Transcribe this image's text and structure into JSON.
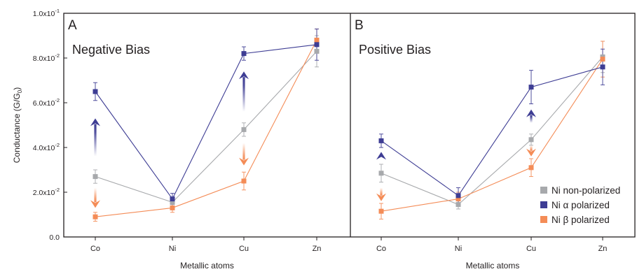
{
  "chart_data": {
    "type": "line",
    "ylabel": "Conductance (G/G",
    "ylabel_sub": "0",
    "ylabel_close": ")",
    "ylim": [
      0,
      0.1
    ],
    "y_ticks": [
      {
        "value": 0.0,
        "label": "0.0"
      },
      {
        "value": 0.02,
        "mant": "2.0x10",
        "exp": "-2"
      },
      {
        "value": 0.04,
        "mant": "4.0x10",
        "exp": "-2"
      },
      {
        "value": 0.06,
        "mant": "6.0x10",
        "exp": "-2"
      },
      {
        "value": 0.08,
        "mant": "8.0x10",
        "exp": "-2"
      },
      {
        "value": 0.1,
        "mant": "1.0x10",
        "exp": "-1"
      }
    ],
    "colors": {
      "non": "#a7a9ac",
      "alpha": "#3e3d94",
      "beta": "#f48c57",
      "axis": "#231f20"
    },
    "legend": [
      {
        "key": "non",
        "label": "Ni non-polarized"
      },
      {
        "key": "alpha",
        "label": "Ni α polarized"
      },
      {
        "key": "beta",
        "label": "Ni β polarized"
      }
    ],
    "panels": [
      {
        "letter": "A",
        "subtitle": "Negative Bias",
        "xlabel": "Metallic atoms",
        "categories": [
          "Co",
          "Ni",
          "Cu",
          "Zn"
        ],
        "series": [
          {
            "key": "non",
            "values": [
              0.027,
              0.0155,
              0.048,
              0.083
            ],
            "errors": [
              0.003,
              0.002,
              0.003,
              0.007
            ]
          },
          {
            "key": "alpha",
            "values": [
              0.065,
              0.017,
              0.082,
              0.086
            ],
            "errors": [
              0.004,
              0.0025,
              0.003,
              0.007
            ]
          },
          {
            "key": "beta",
            "values": [
              0.009,
              0.013,
              0.025,
              0.088
            ],
            "errors": [
              0.002,
              0.002,
              0.004,
              0.005
            ]
          }
        ],
        "arrows": [
          {
            "cat": "Co",
            "dir": "up",
            "key": "alpha",
            "from": 0.036,
            "to": 0.053
          },
          {
            "cat": "Co",
            "dir": "down",
            "key": "beta",
            "from": 0.022,
            "to": 0.013
          },
          {
            "cat": "Cu",
            "dir": "up",
            "key": "alpha",
            "from": 0.056,
            "to": 0.074
          },
          {
            "cat": "Cu",
            "dir": "down",
            "key": "beta",
            "from": 0.042,
            "to": 0.032
          }
        ]
      },
      {
        "letter": "B",
        "subtitle": "Positive Bias",
        "xlabel": "Metallic atoms",
        "categories": [
          "Co",
          "Ni",
          "Cu",
          "Zn"
        ],
        "series": [
          {
            "key": "non",
            "values": [
              0.0285,
              0.0145,
              0.0435,
              0.0805
            ],
            "errors": [
              0.004,
              0.002,
              0.0025,
              0.007
            ]
          },
          {
            "key": "alpha",
            "values": [
              0.043,
              0.0185,
              0.067,
              0.076
            ],
            "errors": [
              0.003,
              0.0035,
              0.0075,
              0.008
            ]
          },
          {
            "key": "beta",
            "values": [
              0.0115,
              0.017,
              0.031,
              0.0795
            ],
            "errors": [
              0.0035,
              0.003,
              0.004,
              0.008
            ]
          }
        ],
        "arrows": [
          {
            "cat": "Co",
            "dir": "up",
            "key": "alpha",
            "from": 0.036,
            "to": 0.038
          },
          {
            "cat": "Co",
            "dir": "down",
            "key": "beta",
            "from": 0.022,
            "to": 0.016
          },
          {
            "cat": "Cu",
            "dir": "up",
            "key": "alpha",
            "from": 0.051,
            "to": 0.057
          },
          {
            "cat": "Cu",
            "dir": "down",
            "key": "beta",
            "from": 0.041,
            "to": 0.036
          }
        ]
      }
    ]
  }
}
